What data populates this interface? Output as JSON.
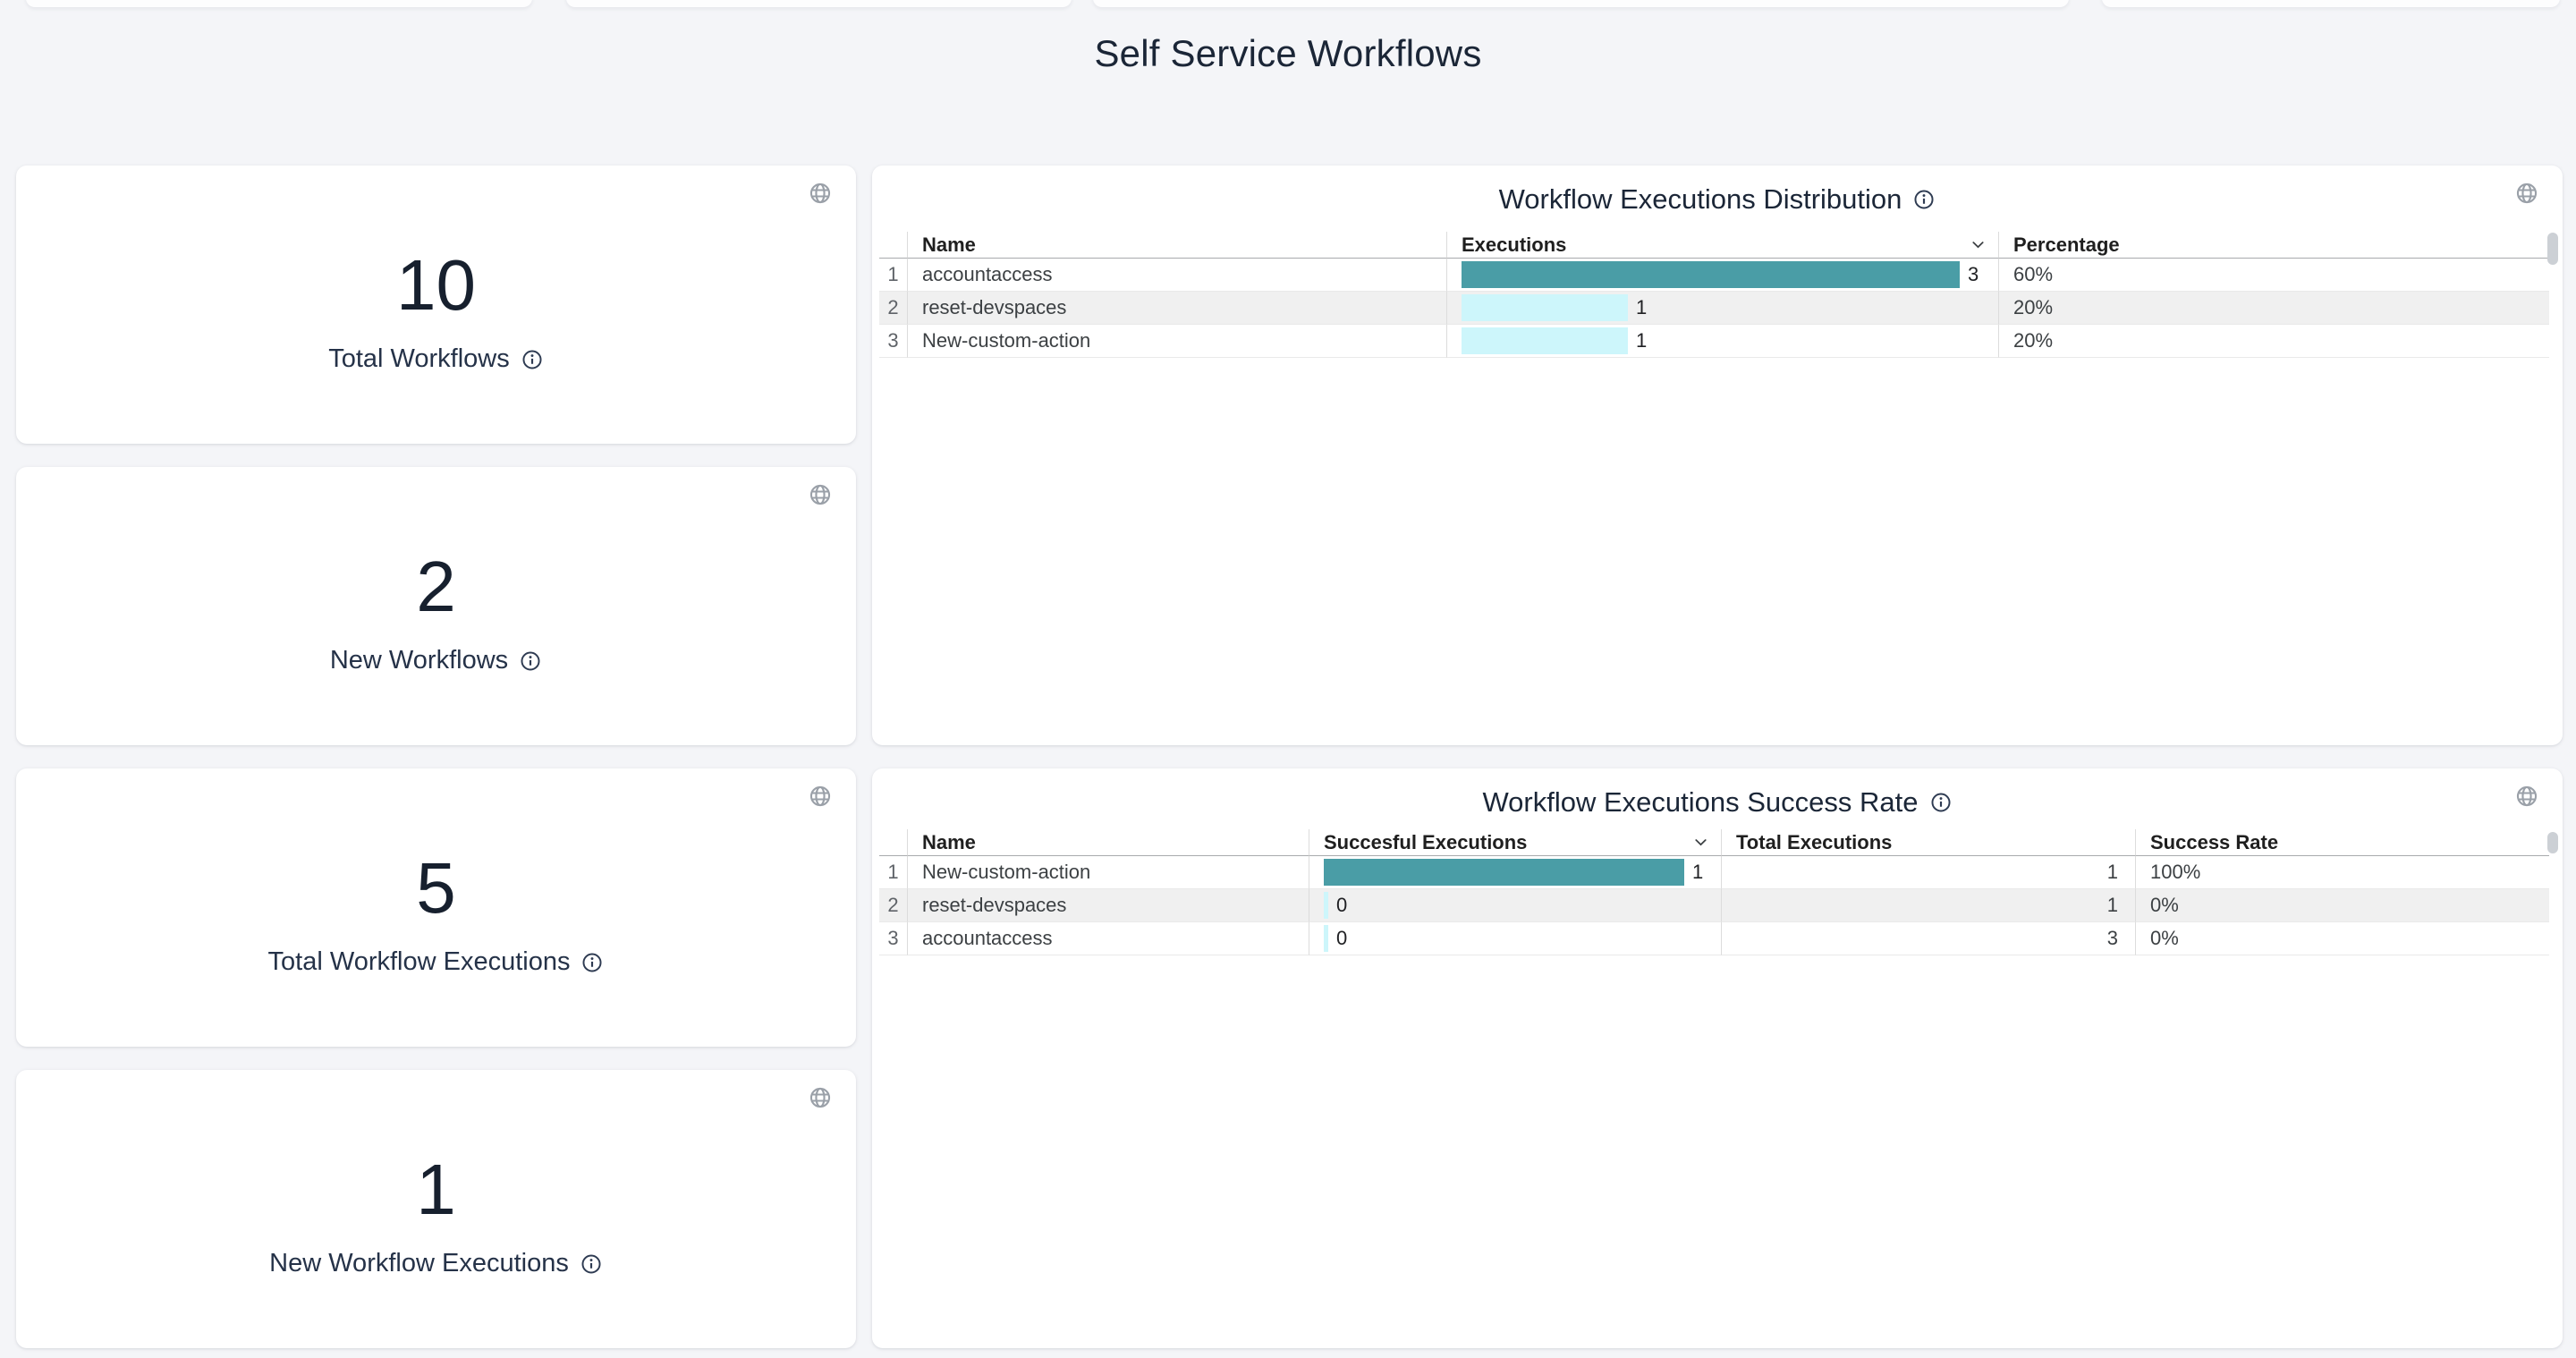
{
  "page": {
    "title": "Self Service Workflows"
  },
  "colors": {
    "background": "#f4f5f8",
    "card": "#ffffff",
    "accent_dark_navy": "#1b2637",
    "bar_primary_teal": "#4a9da6",
    "bar_secondary_cyan": "#cdf6fb",
    "alt_row": "#f0f0f0",
    "icon_gray": "#9aa0a8"
  },
  "icons": {
    "globe": "language-globe",
    "info": "info-circle-outline",
    "sort": "chevron-down"
  },
  "stat_cards": [
    {
      "value": "10",
      "label": "Total Workflows"
    },
    {
      "value": "2",
      "label": "New Workflows"
    },
    {
      "value": "5",
      "label": "Total Workflow Executions"
    },
    {
      "value": "1",
      "label": "New Workflow Executions"
    }
  ],
  "distribution": {
    "title": "Workflow Executions Distribution",
    "columns": [
      {
        "label": "Name"
      },
      {
        "label": "Executions",
        "sorted": "desc"
      },
      {
        "label": "Percentage"
      }
    ],
    "max_value": 3,
    "rows": [
      {
        "num": "1",
        "name": "accountaccess",
        "executions": 3,
        "executions_label": "3",
        "percentage": "60%"
      },
      {
        "num": "2",
        "name": "reset-devspaces",
        "executions": 1,
        "executions_label": "1",
        "percentage": "20%"
      },
      {
        "num": "3",
        "name": "New-custom-action",
        "executions": 1,
        "executions_label": "1",
        "percentage": "20%"
      }
    ]
  },
  "success_rate": {
    "title": "Workflow Executions Success Rate",
    "columns": [
      {
        "label": "Name"
      },
      {
        "label": "Succesful Executions",
        "sorted": "desc"
      },
      {
        "label": "Total Executions"
      },
      {
        "label": "Success Rate"
      }
    ],
    "max_value": 1,
    "rows": [
      {
        "num": "1",
        "name": "New-custom-action",
        "successful": 1,
        "successful_label": "1",
        "total": "1",
        "rate": "100%"
      },
      {
        "num": "2",
        "name": "reset-devspaces",
        "successful": 0,
        "successful_label": "0",
        "total": "1",
        "rate": "0%"
      },
      {
        "num": "3",
        "name": "accountaccess",
        "successful": 0,
        "successful_label": "0",
        "total": "3",
        "rate": "0%"
      }
    ]
  }
}
